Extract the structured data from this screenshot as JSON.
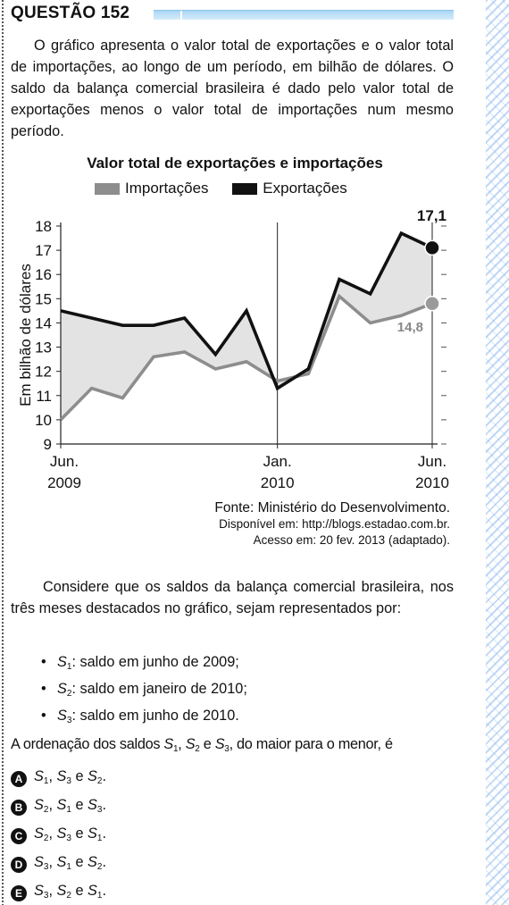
{
  "header": {
    "title": "QUESTÃO 152"
  },
  "intro": "O gráfico apresenta o valor total de exportações e o valor total de importações, ao longo de um período, em bilhão de dólares. O saldo da balança comercial brasileira é dado pelo valor total de exportações menos o valor total de importações num mesmo período.",
  "chart_data": {
    "type": "line",
    "title": "Valor total de exportações e importações",
    "ylabel": "Em bilhão de dólares",
    "ylim": [
      9,
      18
    ],
    "yticks": [
      "9",
      "10",
      "11",
      "12",
      "13",
      "14",
      "15",
      "16",
      "17",
      "18"
    ],
    "x": [
      0,
      1,
      2,
      3,
      4,
      5,
      6,
      7,
      8,
      9,
      10,
      11,
      12
    ],
    "xtick_labels": [
      {
        "index": 0,
        "line1": "Jun.",
        "line2": "2009"
      },
      {
        "index": 7,
        "line1": "Jan.",
        "line2": "2010"
      },
      {
        "index": 12,
        "line1": "Jun.",
        "line2": "2010"
      }
    ],
    "series": [
      {
        "name": "Importações",
        "color": "#8d8d8d",
        "values": [
          10.0,
          11.3,
          10.9,
          12.6,
          12.8,
          12.1,
          12.4,
          11.6,
          11.9,
          15.1,
          14.0,
          14.3,
          14.8
        ]
      },
      {
        "name": "Exportações",
        "color": "#111111",
        "values": [
          14.5,
          14.2,
          13.9,
          13.9,
          14.2,
          12.7,
          14.5,
          11.3,
          12.1,
          15.8,
          15.2,
          17.7,
          17.1
        ]
      }
    ],
    "annotations": [
      {
        "text": "17,1",
        "series": "Exportações",
        "index": 12
      },
      {
        "text": "14,8",
        "series": "Importações",
        "index": 12
      }
    ],
    "fill_between": true,
    "grid": false,
    "legend_position": "top"
  },
  "source": {
    "line1": "Fonte: Ministério do Desenvolvimento.",
    "line2": "Disponível em: http://blogs.estadao.com.br.",
    "line3": "Acesso em: 20 fev. 2013 (adaptado)."
  },
  "prompt": "Considere que os saldos da balança comercial brasileira, nos três meses destacados no gráfico, sejam representados por:",
  "bullets": [
    {
      "sym": "S",
      "sub": "1",
      "text": ": saldo em junho de 2009;"
    },
    {
      "sym": "S",
      "sub": "2",
      "text": ": saldo em janeiro de 2010;"
    },
    {
      "sym": "S",
      "sub": "3",
      "text": ": saldo em junho de 2010."
    }
  ],
  "question": {
    "pre": "A ordenação dos saldos ",
    "sep1": ", ",
    "sep2": " e ",
    "post": ", do maior para o menor, é",
    "s": "S",
    "sub1": "1",
    "sub2": "2",
    "sub3": "3"
  },
  "options": [
    {
      "letter": "A",
      "a": "S",
      "as": "1",
      "sep1": ", ",
      "b": "S",
      "bs": "3",
      "sep2": " e ",
      "c": "S",
      "cs": "2",
      "end": "."
    },
    {
      "letter": "B",
      "a": "S",
      "as": "2",
      "sep1": ", ",
      "b": "S",
      "bs": "1",
      "sep2": " e ",
      "c": "S",
      "cs": "3",
      "end": "."
    },
    {
      "letter": "C",
      "a": "S",
      "as": "2",
      "sep1": ", ",
      "b": "S",
      "bs": "3",
      "sep2": " e ",
      "c": "S",
      "cs": "1",
      "end": "."
    },
    {
      "letter": "D",
      "a": "S",
      "as": "3",
      "sep1": ", ",
      "b": "S",
      "bs": "1",
      "sep2": " e ",
      "c": "S",
      "cs": "2",
      "end": "."
    },
    {
      "letter": "E",
      "a": "S",
      "as": "3",
      "sep1": ", ",
      "b": "S",
      "bs": "2",
      "sep2": " e ",
      "c": "S",
      "cs": "1",
      "end": "."
    }
  ]
}
